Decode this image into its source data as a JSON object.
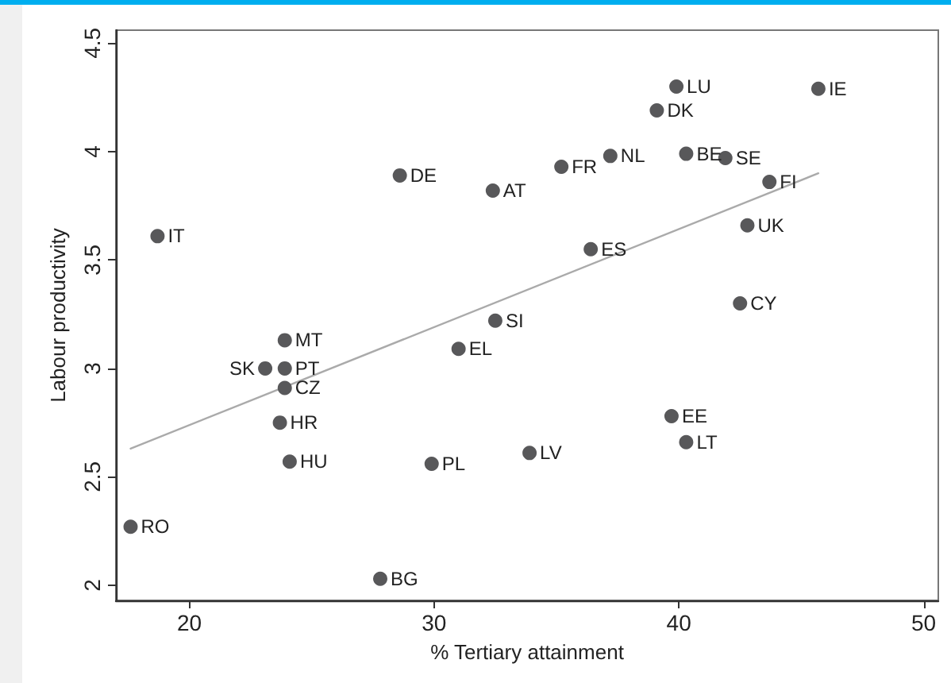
{
  "chart_data": {
    "type": "scatter",
    "xlabel": "% Tertiary attainment",
    "ylabel": "Labour productivity",
    "xlim": [
      17,
      50.6
    ],
    "ylim": [
      1.93,
      4.56
    ],
    "xticks": [
      20,
      30,
      40,
      50
    ],
    "yticks": [
      2,
      2.5,
      3,
      3.5,
      4,
      4.5
    ],
    "marker": "circle",
    "series": [
      {
        "color": "#58585a",
        "x": [
          18.7,
          28.6,
          23.9,
          23.1,
          23.9,
          23.9,
          23.7,
          24.1,
          17.6,
          27.8,
          29.9,
          31.0,
          32.5,
          33.9,
          39.7,
          40.3,
          32.4,
          35.2,
          37.2,
          39.9,
          39.1,
          40.3,
          41.9,
          45.7,
          43.7,
          42.8,
          36.4,
          42.5
        ],
        "values": [
          3.61,
          3.89,
          3.13,
          3.0,
          3.0,
          2.91,
          2.75,
          2.57,
          2.27,
          2.03,
          2.56,
          3.09,
          3.22,
          2.61,
          2.78,
          2.66,
          3.82,
          3.93,
          3.98,
          4.3,
          4.19,
          3.99,
          3.97,
          4.29,
          3.86,
          3.66,
          3.55,
          3.3
        ],
        "value_labels": [
          "IT",
          "DE",
          "MT",
          "SK",
          "PT",
          "CZ",
          "HR",
          "HU",
          "RO",
          "BG",
          "PL",
          "EL",
          "SI",
          "LV",
          "EE",
          "LT",
          "AT",
          "FR",
          "NL",
          "LU",
          "DK",
          "BE",
          "SE",
          "IE",
          "FI",
          "UK",
          "ES",
          "CY"
        ]
      },
      {
        "type": "line",
        "color": "#aaaaaa",
        "marker": "none",
        "x": [
          17.6,
          45.7
        ],
        "values": [
          2.63,
          3.9
        ]
      }
    ]
  }
}
